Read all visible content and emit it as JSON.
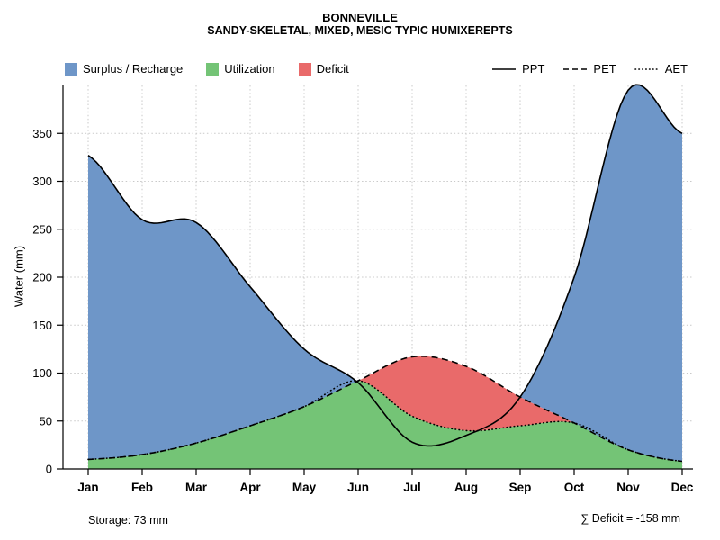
{
  "title": "BONNEVILLE",
  "subtitle": "SANDY-SKELETAL, MIXED, MESIC TYPIC HUMIXEREPTS",
  "ylabel": "Water (mm)",
  "footer": {
    "storage": "Storage: 73 mm",
    "deficit": "∑ Deficit = -158 mm"
  },
  "legend": {
    "areas": [
      {
        "label": "Surplus / Recharge",
        "color": "#6e96c8"
      },
      {
        "label": "Utilization",
        "color": "#74c476"
      },
      {
        "label": "Deficit",
        "color": "#e96a6a"
      }
    ],
    "lines": [
      {
        "label": "PPT",
        "style": "solid"
      },
      {
        "label": "PET",
        "style": "dashed"
      },
      {
        "label": "AET",
        "style": "dotted"
      }
    ]
  },
  "chart_data": {
    "type": "area",
    "title": "BONNEVILLE",
    "subtitle": "SANDY-SKELETAL, MIXED, MESIC TYPIC HUMIXEREPTS",
    "xlabel": "",
    "ylabel": "Water (mm)",
    "x": [
      "Jan",
      "Feb",
      "Mar",
      "Apr",
      "May",
      "Jun",
      "Jul",
      "Aug",
      "Sep",
      "Oct",
      "Nov",
      "Dec"
    ],
    "series": [
      {
        "name": "PPT",
        "style": "solid",
        "values": [
          327,
          260,
          257,
          190,
          125,
          90,
          28,
          35,
          75,
          200,
          395,
          350
        ]
      },
      {
        "name": "PET",
        "style": "dashed",
        "values": [
          10,
          15,
          27,
          45,
          65,
          92,
          117,
          107,
          75,
          48,
          20,
          8
        ]
      },
      {
        "name": "AET",
        "style": "dotted",
        "values": [
          10,
          15,
          27,
          45,
          65,
          92,
          55,
          40,
          45,
          48,
          20,
          8
        ]
      }
    ],
    "regions": [
      {
        "name": "surplus_recharge",
        "rule": "between PPT and PET where PPT > PET",
        "color_ref": "legend.areas.0"
      },
      {
        "name": "utilization",
        "rule": "area under AET",
        "color_ref": "legend.areas.1"
      },
      {
        "name": "deficit",
        "rule": "between PET and AET where PET > AET",
        "color_ref": "legend.areas.2"
      }
    ],
    "annotations": {
      "storage_mm": 73,
      "deficit_sum_mm": -158
    },
    "ylim": [
      0,
      400
    ],
    "y_ticks": [
      0,
      50,
      100,
      150,
      200,
      250,
      300,
      350
    ],
    "grid": true,
    "legend_position": "top"
  }
}
